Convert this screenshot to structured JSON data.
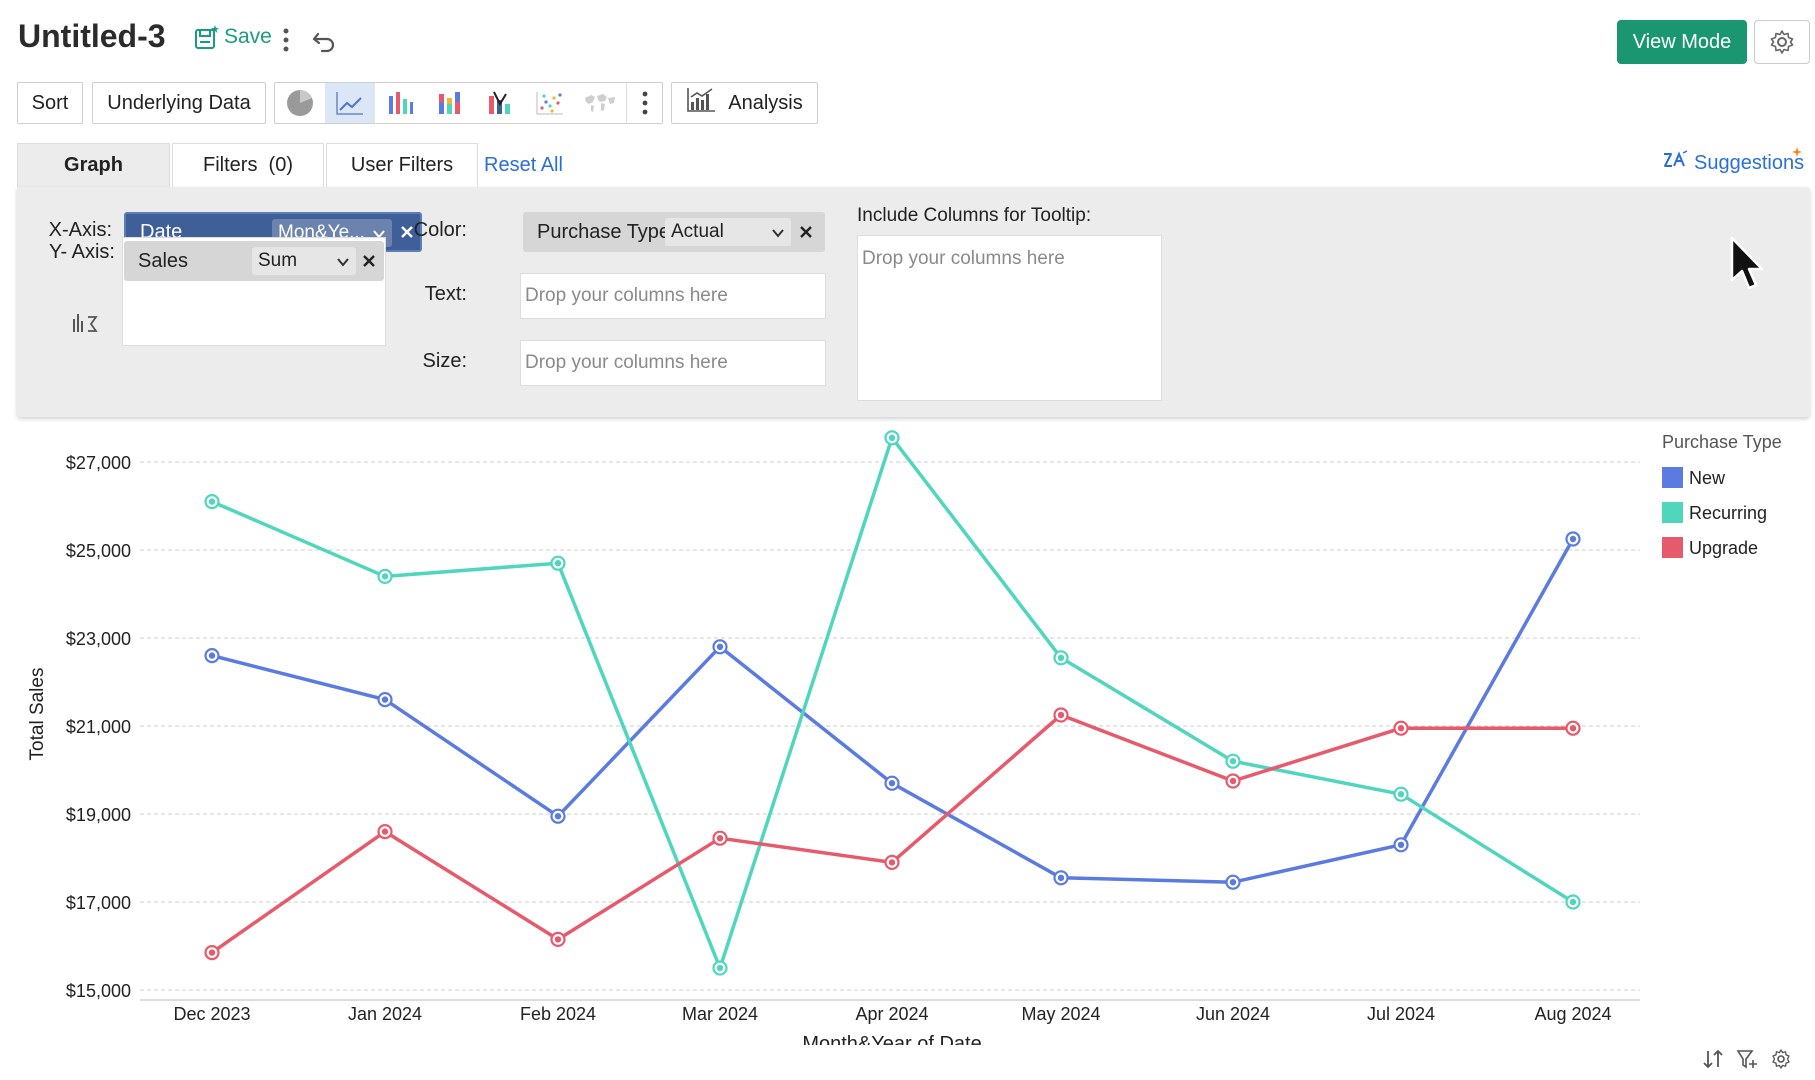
{
  "header": {
    "title": "Untitled-3",
    "save_label": "Save",
    "view_mode_label": "View Mode"
  },
  "toolbar": {
    "sort_label": "Sort",
    "underlying_data_label": "Underlying Data",
    "chart_types": [
      "pie",
      "line",
      "bar",
      "stacked-bar",
      "waterfall",
      "scatter",
      "map"
    ],
    "active_chart_type": "line",
    "analysis_label": "Analysis"
  },
  "tabs": [
    {
      "label": "Graph",
      "active": true
    },
    {
      "label": "Filters  (0)",
      "active": false
    },
    {
      "label": "User Filters",
      "active": false
    }
  ],
  "reset_all_label": "Reset All",
  "suggestions_label": "Suggestions",
  "shelf": {
    "x_axis_label": "X-Axis:",
    "x_field": "Date",
    "x_function": "Mon&Ye...",
    "y_axis_label": "Y- Axis:",
    "y_field": "Sales",
    "y_function": "Sum",
    "color_label": "Color:",
    "color_field": "Purchase Type",
    "color_function": "Actual",
    "text_label": "Text:",
    "size_label": "Size:",
    "drop_placeholder": "Drop your columns here",
    "tooltip_label": "Include Columns for Tooltip:",
    "tooltip_placeholder": "Drop your columns here"
  },
  "colors": {
    "accent": "#1a9670",
    "link": "#2b6fd6",
    "new": "#5b7be0",
    "recurring": "#4fd6bd",
    "upgrade": "#e65a6c"
  },
  "chart_data": {
    "type": "line",
    "xlabel": "Month&Year of Date",
    "ylabel": "Total Sales",
    "ylim": [
      15000,
      27500
    ],
    "yticks": [
      15000,
      17000,
      19000,
      21000,
      23000,
      25000,
      27000
    ],
    "ytick_labels": [
      "$15,000",
      "$17,000",
      "$19,000",
      "$21,000",
      "$23,000",
      "$25,000",
      "$27,000"
    ],
    "grid": true,
    "categories": [
      "Dec 2023",
      "Jan 2024",
      "Feb 2024",
      "Mar 2024",
      "Apr 2024",
      "May 2024",
      "Jun 2024",
      "Jul 2024",
      "Aug 2024"
    ],
    "legend_title": "Purchase Type",
    "legend_position": "right",
    "series": [
      {
        "name": "New",
        "color": "#5b7be0",
        "values": [
          22600,
          21600,
          18950,
          22800,
          19700,
          17550,
          17450,
          18300,
          25250
        ]
      },
      {
        "name": "Recurring",
        "color": "#4fd6bd",
        "values": [
          26100,
          24400,
          24700,
          15500,
          27550,
          22550,
          20200,
          19450,
          17000
        ]
      },
      {
        "name": "Upgrade",
        "color": "#e65a6c",
        "values": [
          15850,
          18600,
          16150,
          18450,
          17900,
          21250,
          19750,
          20950,
          20950
        ]
      }
    ]
  }
}
